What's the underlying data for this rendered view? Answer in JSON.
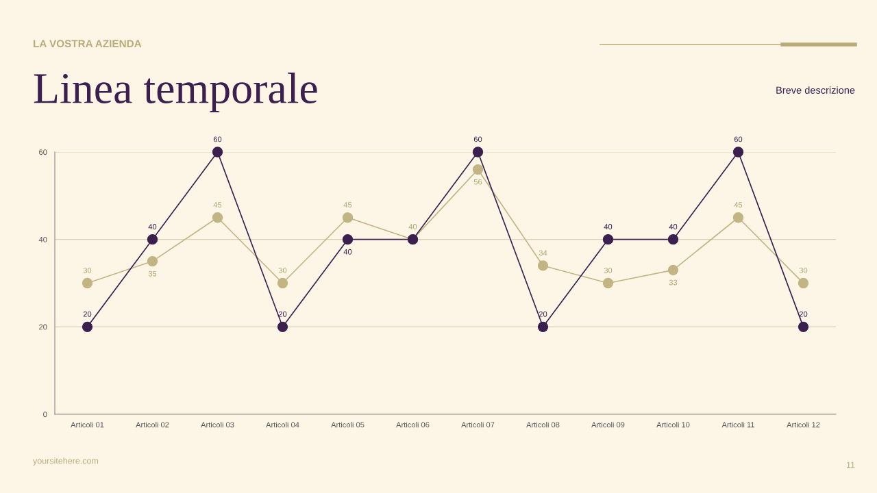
{
  "chart_data": {
    "type": "line",
    "title": "Linea temporale",
    "subtitle": "Breve descrizione",
    "annotations": [
      "LA VOSTRA AZIENDA",
      "yoursitehere.com",
      "11"
    ],
    "categories": [
      "Articoli 01",
      "Articoli 02",
      "Articoli 03",
      "Articoli 04",
      "Articoli 05",
      "Articoli 06",
      "Articoli 07",
      "Articoli 08",
      "Articoli 09",
      "Articoli 10",
      "Articoli 11",
      "Articoli 12"
    ],
    "series": [
      {
        "color": "#c2b483",
        "values": [
          30,
          35,
          45,
          30,
          45,
          40,
          56,
          34,
          30,
          33,
          45,
          30
        ],
        "value_labels": [
          "30",
          "35",
          "45",
          "30",
          "45",
          "40",
          "56",
          "34",
          "30",
          "33",
          "45",
          "30"
        ]
      },
      {
        "color": "#3a1f4f",
        "values": [
          20,
          40,
          60,
          20,
          40,
          40,
          60,
          20,
          40,
          40,
          60,
          20
        ],
        "value_labels": [
          "20",
          "40",
          "60",
          "20",
          "40",
          null,
          "60",
          "20",
          "40",
          "40",
          "60",
          "20"
        ]
      }
    ],
    "ylim": [
      0,
      60
    ],
    "yticks": [
      0,
      20,
      40,
      60
    ],
    "grid": "y",
    "marker": "circle",
    "line_style": "solid"
  }
}
